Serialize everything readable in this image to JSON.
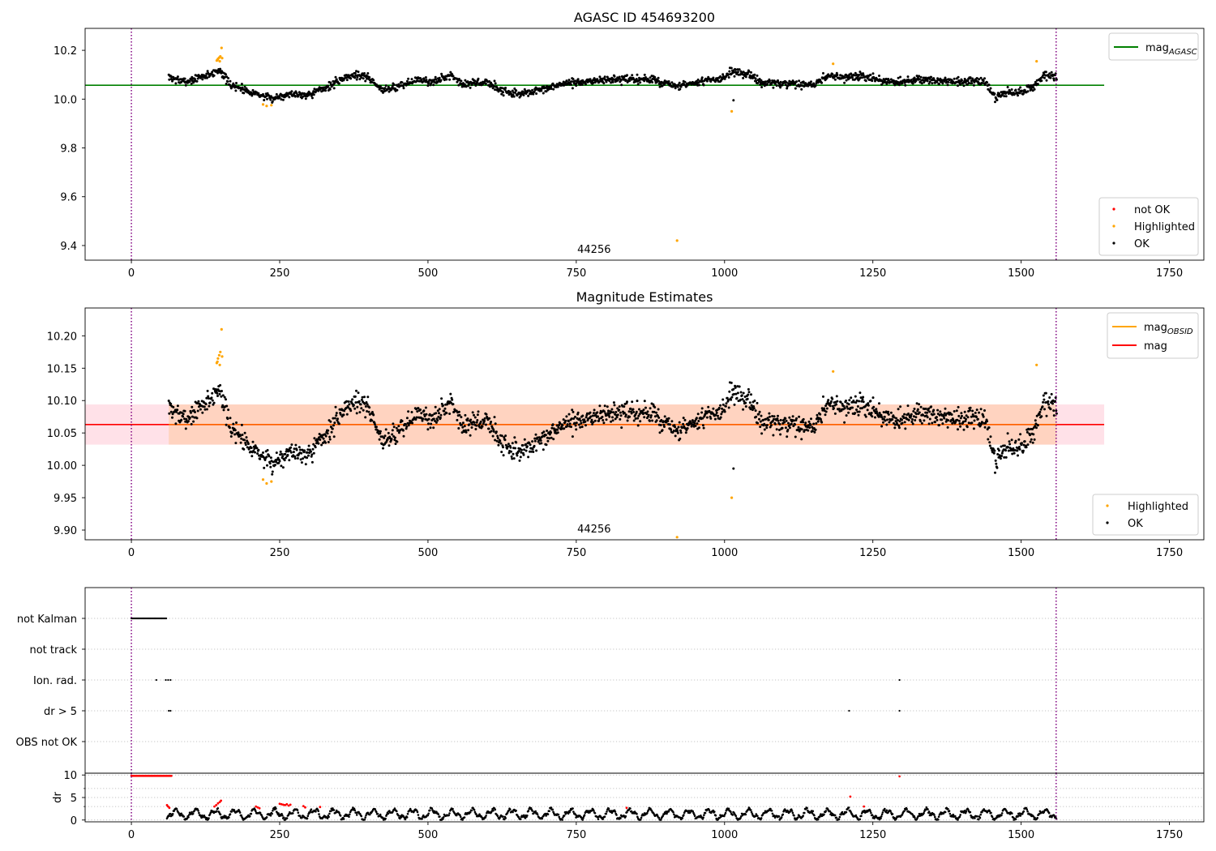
{
  "figure_title": "AGASC ID 454693200",
  "colors": {
    "ok": "#000000",
    "highlighted": "#ffa500",
    "not_ok": "#ff0000",
    "mag_agasc_line": "#008000",
    "mag_line": "#ff0000",
    "mag_obsid_line": "#ffa500",
    "band_fill": "#ffd3c0",
    "band_edge_fill": "#ffe1e8",
    "obs_boundary": "#800080",
    "grid": "#b0b0b0"
  },
  "chart_data": [
    {
      "id": "panel1",
      "type": "scatter",
      "title": "",
      "xlim": [
        -78,
        1808
      ],
      "ylim": [
        9.34,
        10.29
      ],
      "xticks": [
        0,
        250,
        500,
        750,
        1000,
        1250,
        1500,
        1750
      ],
      "yticks": [
        9.4,
        9.6,
        9.8,
        10.0,
        10.2
      ],
      "ytick_labels": [
        "9.4",
        "9.6",
        "9.8",
        "10.0",
        "10.2"
      ],
      "obsid_label": "44256",
      "obs_boundaries": [
        0,
        1559
      ],
      "legend_lines": [
        {
          "label": "mag",
          "sub": "AGASC",
          "color": "#008000"
        }
      ],
      "legend_points": [
        {
          "label": "not OK",
          "color": "#ff0000"
        },
        {
          "label": "Highlighted",
          "color": "#ffa500"
        },
        {
          "label": "OK",
          "color": "#000000"
        }
      ],
      "hlines": [
        {
          "y": 10.057,
          "x": [
            -78,
            1640
          ],
          "color": "#008000"
        }
      ],
      "series": [
        {
          "name": "OK",
          "color": "#000000",
          "trend": [
            [
              63,
              10.09
            ],
            [
              90,
              10.07
            ],
            [
              130,
              10.1
            ],
            [
              150,
              10.12
            ],
            [
              165,
              10.06
            ],
            [
              190,
              10.04
            ],
            [
              215,
              10.02
            ],
            [
              235,
              10.0
            ],
            [
              260,
              10.02
            ],
            [
              300,
              10.02
            ],
            [
              340,
              10.06
            ],
            [
              360,
              10.09
            ],
            [
              380,
              10.1
            ],
            [
              400,
              10.09
            ],
            [
              420,
              10.04
            ],
            [
              450,
              10.05
            ],
            [
              480,
              10.08
            ],
            [
              510,
              10.07
            ],
            [
              540,
              10.1
            ],
            [
              560,
              10.06
            ],
            [
              600,
              10.07
            ],
            [
              620,
              10.04
            ],
            [
              650,
              10.02
            ],
            [
              700,
              10.04
            ],
            [
              720,
              10.06
            ],
            [
              760,
              10.07
            ],
            [
              800,
              10.08
            ],
            [
              850,
              10.08
            ],
            [
              880,
              10.08
            ],
            [
              920,
              10.05
            ],
            [
              960,
              10.07
            ],
            [
              1000,
              10.09
            ],
            [
              1010,
              10.11
            ],
            [
              1040,
              10.1
            ],
            [
              1060,
              10.07
            ],
            [
              1100,
              10.06
            ],
            [
              1150,
              10.06
            ],
            [
              1180,
              10.1
            ],
            [
              1200,
              10.09
            ],
            [
              1250,
              10.09
            ],
            [
              1270,
              10.07
            ],
            [
              1300,
              10.07
            ],
            [
              1330,
              10.08
            ],
            [
              1400,
              10.07
            ],
            [
              1440,
              10.07
            ],
            [
              1455,
              10.01
            ],
            [
              1480,
              10.03
            ],
            [
              1500,
              10.03
            ],
            [
              1520,
              10.05
            ],
            [
              1540,
              10.1
            ],
            [
              1560,
              10.09
            ]
          ],
          "x_range": [
            63,
            1560
          ],
          "step": 0.85,
          "noise": 0.016,
          "seed": 7,
          "extra": [
            [
              1015,
              9.995
            ]
          ]
        },
        {
          "name": "Highlighted",
          "color": "#ffa500",
          "points": [
            [
              145,
              10.16
            ],
            [
              146,
              10.165
            ],
            [
              148,
              10.17
            ],
            [
              149,
              10.155
            ],
            [
              150,
              10.175
            ],
            [
              152,
              10.21
            ],
            [
              153,
              10.168
            ],
            [
              144,
              10.158
            ],
            [
              222,
              9.978
            ],
            [
              228,
              9.972
            ],
            [
              236,
              9.975
            ],
            [
              1012,
              9.95
            ],
            [
              1183,
              10.145
            ],
            [
              1526,
              10.155
            ],
            [
              920,
              9.42
            ]
          ]
        }
      ]
    },
    {
      "id": "panel2",
      "type": "scatter",
      "title": "Magnitude Estimates",
      "xlim": [
        -78,
        1808
      ],
      "ylim": [
        9.885,
        10.243
      ],
      "xticks": [
        0,
        250,
        500,
        750,
        1000,
        1250,
        1500,
        1750
      ],
      "yticks": [
        9.9,
        9.95,
        10.0,
        10.05,
        10.1,
        10.15,
        10.2
      ],
      "ytick_labels": [
        "9.90",
        "9.95",
        "10.00",
        "10.05",
        "10.10",
        "10.15",
        "10.20"
      ],
      "obsid_label": "44256",
      "obs_boundaries": [
        0,
        1559
      ],
      "legend_lines": [
        {
          "label": "mag",
          "sub": "OBSID",
          "color": "#ffa500"
        },
        {
          "label": "mag",
          "sub": "",
          "color": "#ff0000"
        }
      ],
      "legend_points": [
        {
          "label": "Highlighted",
          "color": "#ffa500"
        },
        {
          "label": "OK",
          "color": "#000000"
        }
      ],
      "band": {
        "y": [
          10.032,
          10.094
        ],
        "x": [
          -78,
          1640
        ],
        "x_obs": [
          63,
          1560
        ]
      },
      "hlines": [
        {
          "y": 10.063,
          "x": [
            -78,
            1640
          ],
          "color": "#ff0000"
        },
        {
          "y": 10.063,
          "x": [
            63,
            1560
          ],
          "color": "#ffa500"
        }
      ],
      "series": [
        {
          "name": "OK",
          "color": "#000000",
          "trend": [
            [
              63,
              10.09
            ],
            [
              90,
              10.07
            ],
            [
              130,
              10.1
            ],
            [
              150,
              10.12
            ],
            [
              165,
              10.06
            ],
            [
              190,
              10.04
            ],
            [
              215,
              10.02
            ],
            [
              235,
              10.0
            ],
            [
              260,
              10.02
            ],
            [
              300,
              10.02
            ],
            [
              340,
              10.06
            ],
            [
              360,
              10.09
            ],
            [
              380,
              10.1
            ],
            [
              400,
              10.09
            ],
            [
              420,
              10.04
            ],
            [
              450,
              10.05
            ],
            [
              480,
              10.08
            ],
            [
              510,
              10.07
            ],
            [
              540,
              10.1
            ],
            [
              560,
              10.06
            ],
            [
              600,
              10.07
            ],
            [
              620,
              10.04
            ],
            [
              650,
              10.02
            ],
            [
              700,
              10.04
            ],
            [
              720,
              10.06
            ],
            [
              760,
              10.07
            ],
            [
              800,
              10.08
            ],
            [
              850,
              10.08
            ],
            [
              880,
              10.08
            ],
            [
              920,
              10.05
            ],
            [
              960,
              10.07
            ],
            [
              1000,
              10.09
            ],
            [
              1010,
              10.11
            ],
            [
              1040,
              10.1
            ],
            [
              1060,
              10.07
            ],
            [
              1100,
              10.06
            ],
            [
              1150,
              10.06
            ],
            [
              1180,
              10.1
            ],
            [
              1200,
              10.09
            ],
            [
              1250,
              10.09
            ],
            [
              1270,
              10.07
            ],
            [
              1300,
              10.07
            ],
            [
              1330,
              10.08
            ],
            [
              1400,
              10.07
            ],
            [
              1440,
              10.07
            ],
            [
              1455,
              10.01
            ],
            [
              1480,
              10.03
            ],
            [
              1500,
              10.03
            ],
            [
              1520,
              10.05
            ],
            [
              1540,
              10.1
            ],
            [
              1560,
              10.09
            ]
          ],
          "x_range": [
            63,
            1560
          ],
          "step": 0.85,
          "noise": 0.016,
          "seed": 7,
          "extra": [
            [
              1015,
              9.995
            ]
          ]
        },
        {
          "name": "Highlighted",
          "color": "#ffa500",
          "points": [
            [
              145,
              10.16
            ],
            [
              146,
              10.165
            ],
            [
              148,
              10.17
            ],
            [
              149,
              10.155
            ],
            [
              150,
              10.175
            ],
            [
              152,
              10.21
            ],
            [
              153,
              10.168
            ],
            [
              144,
              10.158
            ],
            [
              222,
              9.978
            ],
            [
              228,
              9.972
            ],
            [
              236,
              9.975
            ],
            [
              1012,
              9.95
            ],
            [
              1183,
              10.145
            ],
            [
              1526,
              10.155
            ],
            [
              920,
              9.889
            ]
          ]
        }
      ]
    },
    {
      "id": "panel3",
      "type": "scatter",
      "title": "",
      "xlim": [
        -78,
        1808
      ],
      "ylim": [
        -0.5,
        5.8
      ],
      "categories": [
        "not Kalman",
        "not track",
        "Ion. rad.",
        "dr > 5",
        "OBS not OK"
      ],
      "obs_boundaries": [
        0,
        1559
      ],
      "series": [
        {
          "name": "not Kalman",
          "color": "#000000",
          "x_ranges": [
            [
              0,
              60
            ]
          ],
          "step": 1.2
        },
        {
          "name": "not track",
          "color": "#000000",
          "points": []
        },
        {
          "name": "Ion. rad.",
          "color": "#000000",
          "points": [
            42,
            58,
            62,
            66,
            1295
          ]
        },
        {
          "name": "dr > 5",
          "color": "#000000",
          "points": [
            63,
            66,
            1210,
            1295
          ]
        },
        {
          "name": "OBS not OK",
          "color": "#000000",
          "points": []
        }
      ]
    },
    {
      "id": "panel4",
      "type": "scatter",
      "title": "",
      "ylabel": "dr",
      "xlim": [
        -78,
        1808
      ],
      "ylim": [
        -0.4,
        10.4
      ],
      "xticks": [
        0,
        250,
        500,
        750,
        1000,
        1250,
        1500,
        1750
      ],
      "yticks": [
        0,
        5,
        10
      ],
      "minor_yticks": [
        3,
        7
      ],
      "obs_boundaries": [
        0,
        1559
      ],
      "series": [
        {
          "name": "dr clipped",
          "color": "#ff0000",
          "x_ranges": [
            [
              0,
              68
            ]
          ],
          "y": 9.8,
          "step": 1.3,
          "extra": [
            [
              1295,
              9.7
            ]
          ]
        },
        {
          "name": "dr",
          "color": "#000000",
          "x_range": [
            60,
            1560
          ],
          "step": 1.1,
          "seed": 11
        },
        {
          "name": "dr high",
          "color": "#ff0000",
          "points": [
            [
              60,
              3.3
            ],
            [
              62,
              3.0
            ],
            [
              64,
              2.7
            ],
            [
              140,
              3.0
            ],
            [
              143,
              3.3
            ],
            [
              146,
              3.7
            ],
            [
              149,
              4.0
            ],
            [
              151,
              4.3
            ],
            [
              210,
              3.0
            ],
            [
              213,
              2.8
            ],
            [
              216,
              2.6
            ],
            [
              250,
              3.6
            ],
            [
              253,
              3.5
            ],
            [
              256,
              3.4
            ],
            [
              259,
              3.3
            ],
            [
              262,
              3.5
            ],
            [
              265,
              3.2
            ],
            [
              268,
              3.4
            ],
            [
              290,
              3.1
            ],
            [
              293,
              2.8
            ],
            [
              318,
              2.9
            ],
            [
              835,
              2.7
            ],
            [
              1212,
              5.2
            ],
            [
              1235,
              3.0
            ]
          ]
        }
      ]
    }
  ]
}
